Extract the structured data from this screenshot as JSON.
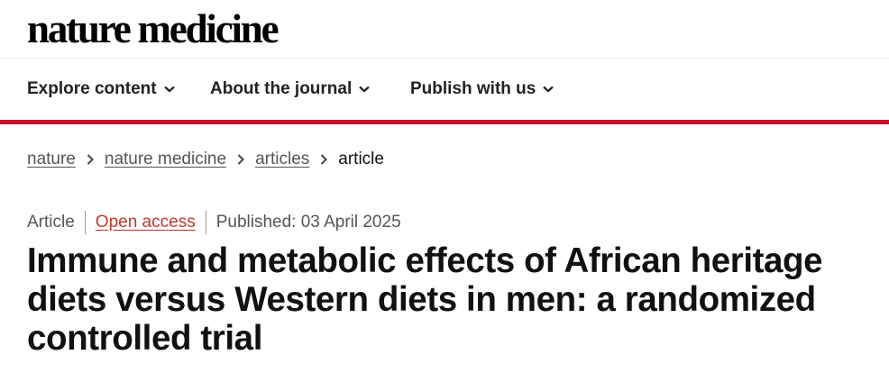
{
  "site": {
    "logo_text": "nature medicine"
  },
  "nav": {
    "items": [
      {
        "label": "Explore content"
      },
      {
        "label": "About the journal"
      },
      {
        "label": "Publish with us"
      }
    ]
  },
  "breadcrumb": {
    "links": [
      "nature",
      "nature medicine",
      "articles"
    ],
    "current": "article"
  },
  "article": {
    "type": "Article",
    "access": "Open access",
    "published": "Published: 03 April 2025",
    "title": "Immune and metabolic effects of African heritage diets versus Western diets in men: a randomized controlled trial"
  },
  "colors": {
    "accent_red": "#c8102e",
    "open_access": "#c0392b"
  },
  "icons": {
    "nav_caret": "chevron-down-icon",
    "breadcrumb_sep": "chevron-right-icon"
  }
}
